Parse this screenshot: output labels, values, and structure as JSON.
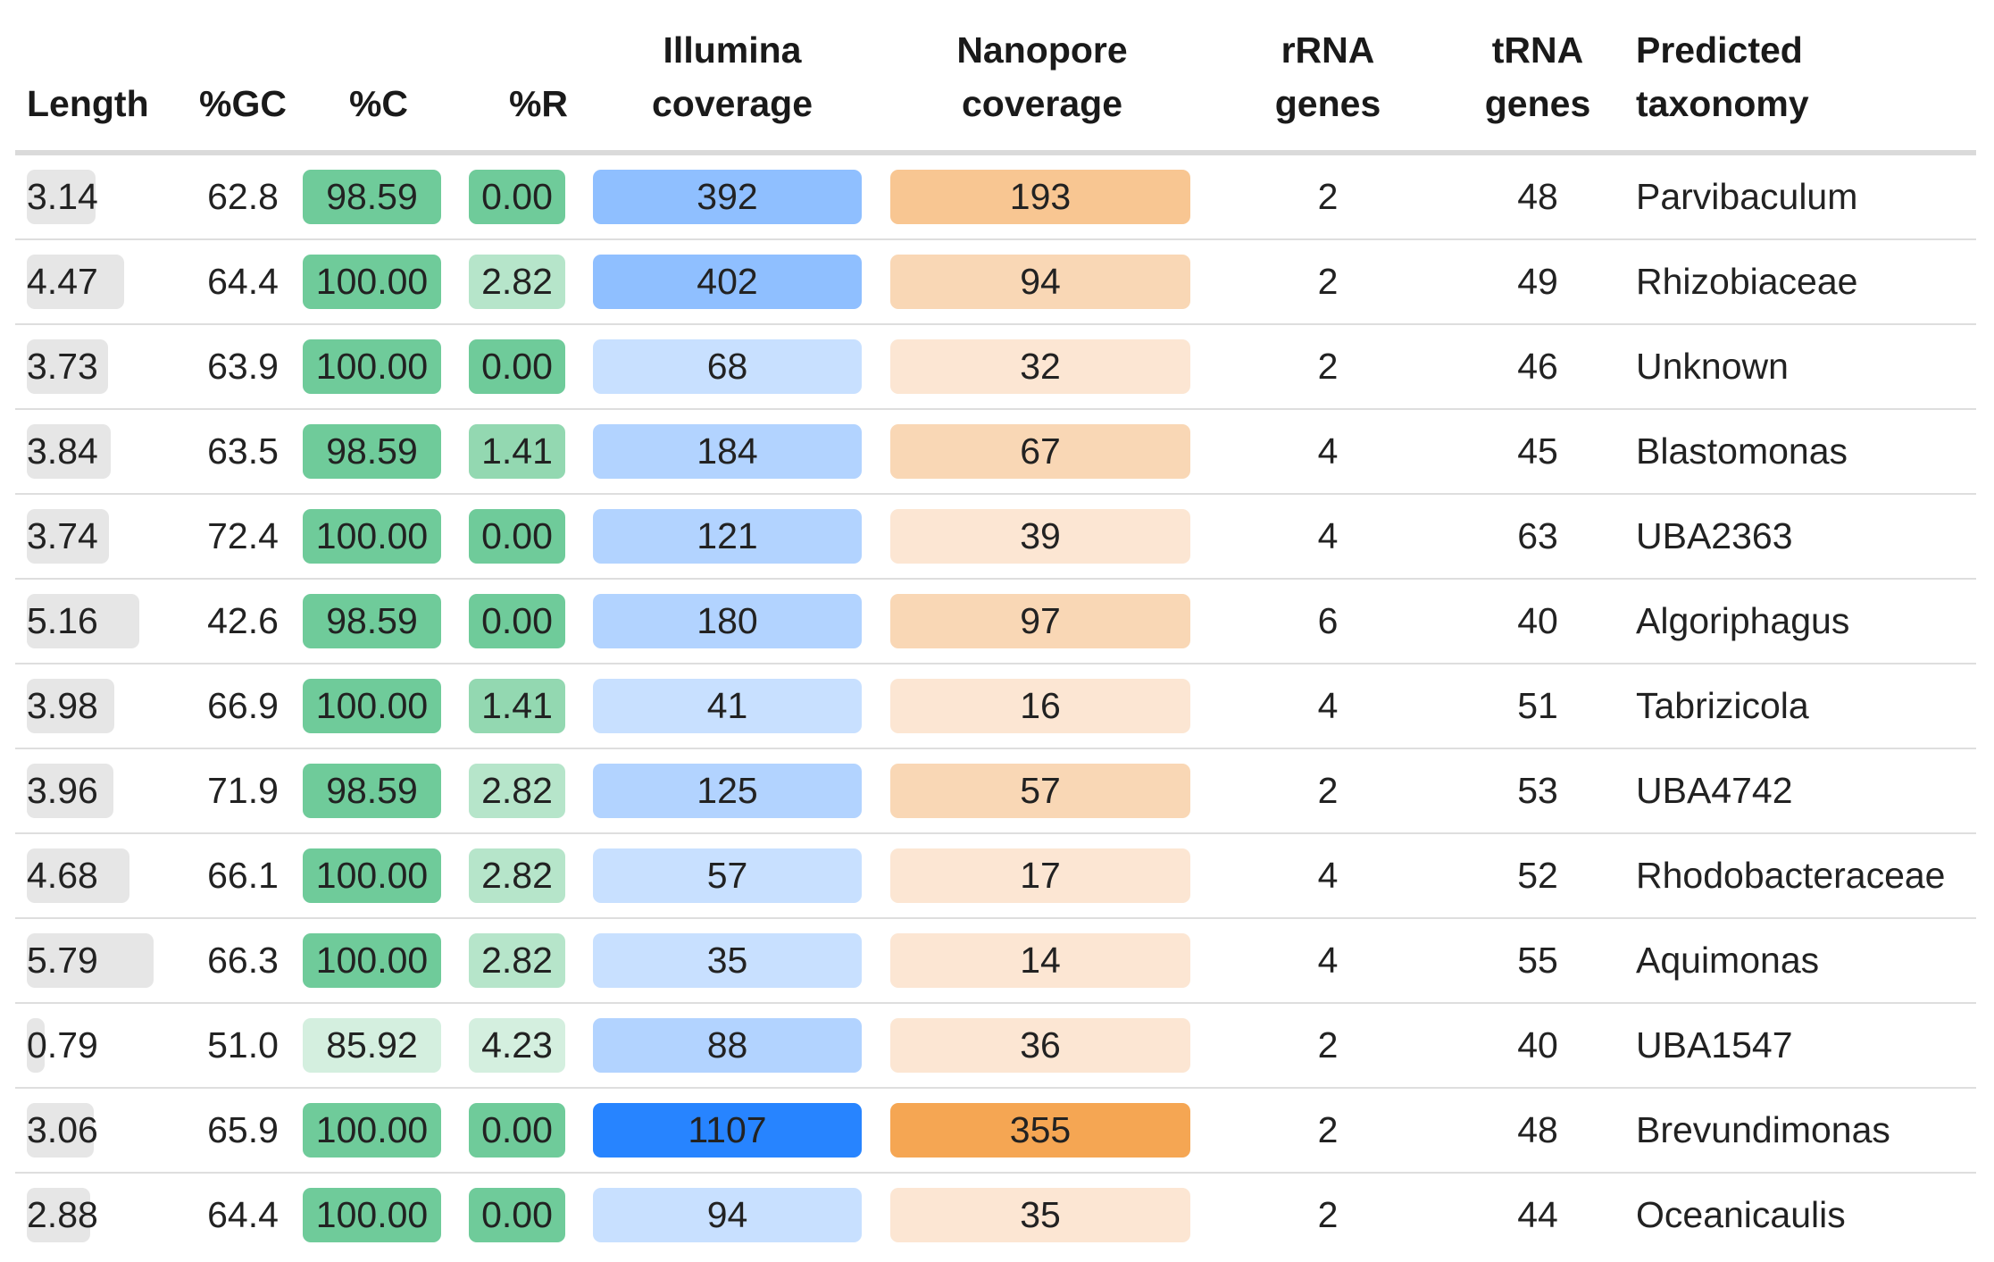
{
  "headers": {
    "length": "Length",
    "gc": "%GC",
    "c": "%C",
    "r": "%R",
    "illumina_1": "Illumina",
    "illumina_2": "coverage",
    "nanopore_1": "Nanopore",
    "nanopore_2": "coverage",
    "rrna_1": "rRNA",
    "rrna_2": "genes",
    "trna_1": "tRNA",
    "trna_2": "genes",
    "tax_1": "Predicted",
    "tax_2": "taxonomy"
  },
  "colors": {
    "green_strong": "#6fcb9a",
    "green_mid": "#93d8b1",
    "green_light": "#b6e5ca",
    "green_pale": "#d4efdf",
    "blue_strong": "#2784ff",
    "blue_mid": "#8fbfff",
    "blue_light": "#b2d3ff",
    "blue_pale": "#c8e0ff",
    "orange_strong": "#f5a653",
    "orange_mid": "#f8c692",
    "orange_light": "#f9d7b5",
    "orange_pale": "#fce6d3",
    "length_bar": "#e6e6e6"
  },
  "rows": [
    {
      "length": "3.14",
      "length_frac": 0.54,
      "gc": "62.8",
      "c": "98.59",
      "c_color": "#6fcb9a",
      "r": "0.00",
      "r_color": "#6fcb9a",
      "illumina": "392",
      "ill_color": "#8fbfff",
      "nanopore": "193",
      "nano_color": "#f8c692",
      "rrna": "2",
      "trna": "48",
      "taxonomy": "Parvibaculum"
    },
    {
      "length": "4.47",
      "length_frac": 0.77,
      "gc": "64.4",
      "c": "100.00",
      "c_color": "#6fcb9a",
      "r": "2.82",
      "r_color": "#b6e5ca",
      "illumina": "402",
      "ill_color": "#8fbfff",
      "nanopore": "94",
      "nano_color": "#f9d7b5",
      "rrna": "2",
      "trna": "49",
      "taxonomy": "Rhizobiaceae"
    },
    {
      "length": "3.73",
      "length_frac": 0.64,
      "gc": "63.9",
      "c": "100.00",
      "c_color": "#6fcb9a",
      "r": "0.00",
      "r_color": "#6fcb9a",
      "illumina": "68",
      "ill_color": "#c8e0ff",
      "nanopore": "32",
      "nano_color": "#fce6d3",
      "rrna": "2",
      "trna": "46",
      "taxonomy": "Unknown"
    },
    {
      "length": "3.84",
      "length_frac": 0.66,
      "gc": "63.5",
      "c": "98.59",
      "c_color": "#6fcb9a",
      "r": "1.41",
      "r_color": "#93d8b1",
      "illumina": "184",
      "ill_color": "#b2d3ff",
      "nanopore": "67",
      "nano_color": "#f9d7b5",
      "rrna": "4",
      "trna": "45",
      "taxonomy": "Blastomonas"
    },
    {
      "length": "3.74",
      "length_frac": 0.65,
      "gc": "72.4",
      "c": "100.00",
      "c_color": "#6fcb9a",
      "r": "0.00",
      "r_color": "#6fcb9a",
      "illumina": "121",
      "ill_color": "#b2d3ff",
      "nanopore": "39",
      "nano_color": "#fce6d3",
      "rrna": "4",
      "trna": "63",
      "taxonomy": "UBA2363"
    },
    {
      "length": "5.16",
      "length_frac": 0.89,
      "gc": "42.6",
      "c": "98.59",
      "c_color": "#6fcb9a",
      "r": "0.00",
      "r_color": "#6fcb9a",
      "illumina": "180",
      "ill_color": "#b2d3ff",
      "nanopore": "97",
      "nano_color": "#f9d7b5",
      "rrna": "6",
      "trna": "40",
      "taxonomy": "Algoriphagus"
    },
    {
      "length": "3.98",
      "length_frac": 0.69,
      "gc": "66.9",
      "c": "100.00",
      "c_color": "#6fcb9a",
      "r": "1.41",
      "r_color": "#93d8b1",
      "illumina": "41",
      "ill_color": "#c8e0ff",
      "nanopore": "16",
      "nano_color": "#fce6d3",
      "rrna": "4",
      "trna": "51",
      "taxonomy": "Tabrizicola"
    },
    {
      "length": "3.96",
      "length_frac": 0.68,
      "gc": "71.9",
      "c": "98.59",
      "c_color": "#6fcb9a",
      "r": "2.82",
      "r_color": "#b6e5ca",
      "illumina": "125",
      "ill_color": "#b2d3ff",
      "nanopore": "57",
      "nano_color": "#f9d7b5",
      "rrna": "2",
      "trna": "53",
      "taxonomy": "UBA4742"
    },
    {
      "length": "4.68",
      "length_frac": 0.81,
      "gc": "66.1",
      "c": "100.00",
      "c_color": "#6fcb9a",
      "r": "2.82",
      "r_color": "#b6e5ca",
      "illumina": "57",
      "ill_color": "#c8e0ff",
      "nanopore": "17",
      "nano_color": "#fce6d3",
      "rrna": "4",
      "trna": "52",
      "taxonomy": "Rhodobacteraceae"
    },
    {
      "length": "5.79",
      "length_frac": 1.0,
      "gc": "66.3",
      "c": "100.00",
      "c_color": "#6fcb9a",
      "r": "2.82",
      "r_color": "#b6e5ca",
      "illumina": "35",
      "ill_color": "#c8e0ff",
      "nanopore": "14",
      "nano_color": "#fce6d3",
      "rrna": "4",
      "trna": "55",
      "taxonomy": "Aquimonas"
    },
    {
      "length": "0.79",
      "length_frac": 0.14,
      "gc": "51.0",
      "c": "85.92",
      "c_color": "#d4efdf",
      "r": "4.23",
      "r_color": "#d4efdf",
      "illumina": "88",
      "ill_color": "#b2d3ff",
      "nanopore": "36",
      "nano_color": "#fce6d3",
      "rrna": "2",
      "trna": "40",
      "taxonomy": "UBA1547"
    },
    {
      "length": "3.06",
      "length_frac": 0.53,
      "gc": "65.9",
      "c": "100.00",
      "c_color": "#6fcb9a",
      "r": "0.00",
      "r_color": "#6fcb9a",
      "illumina": "1107",
      "ill_color": "#2784ff",
      "nanopore": "355",
      "nano_color": "#f5a653",
      "rrna": "2",
      "trna": "48",
      "taxonomy": "Brevundimonas"
    },
    {
      "length": "2.88",
      "length_frac": 0.5,
      "gc": "64.4",
      "c": "100.00",
      "c_color": "#6fcb9a",
      "r": "0.00",
      "r_color": "#6fcb9a",
      "illumina": "94",
      "ill_color": "#c8e0ff",
      "nanopore": "35",
      "nano_color": "#fce6d3",
      "rrna": "2",
      "trna": "44",
      "taxonomy": "Oceanicaulis"
    }
  ]
}
